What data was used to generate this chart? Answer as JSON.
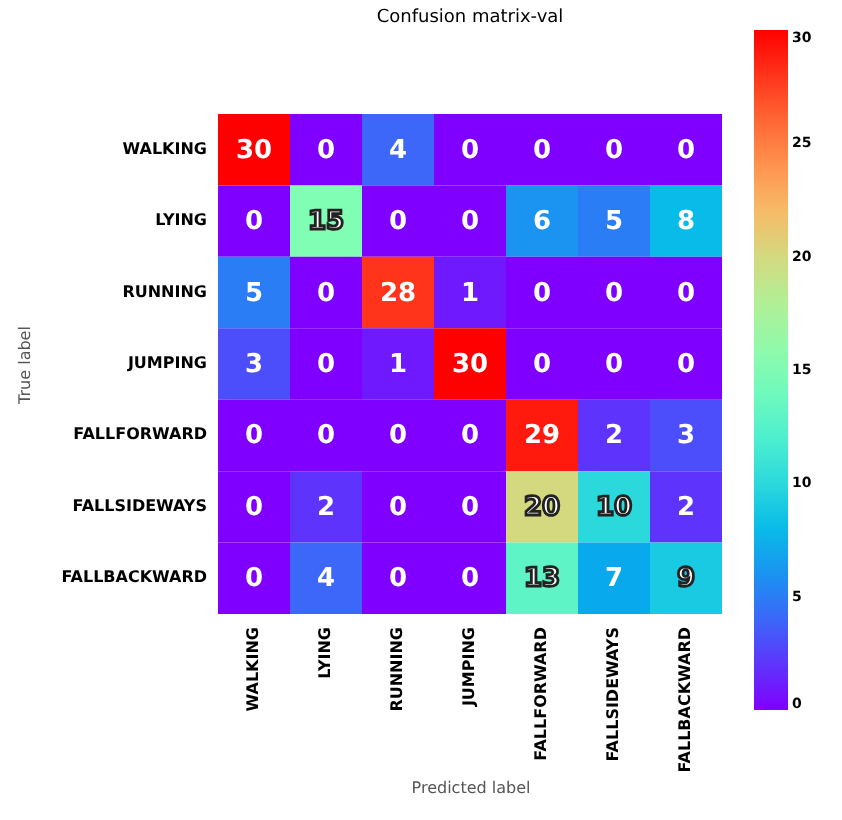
{
  "chart_data": {
    "type": "heatmap",
    "title": "Confusion matrix-val",
    "xlabel": "Predicted label",
    "ylabel": "True label",
    "categories": [
      "WALKING",
      "LYING",
      "RUNNING",
      "JUMPING",
      "FALLFORWARD",
      "FALLSIDEWAYS",
      "FALLBACKWARD"
    ],
    "y_categories": [
      "WALKING",
      "LYING",
      "RUNNING",
      "JUMPING",
      "FALLFORWARD",
      "FALLSIDEWAYS",
      "FALLBACKWARD"
    ],
    "cells": [
      [
        30,
        0,
        4,
        0,
        0,
        0,
        0
      ],
      [
        0,
        15,
        0,
        0,
        6,
        5,
        8
      ],
      [
        5,
        0,
        28,
        1,
        0,
        0,
        0
      ],
      [
        3,
        0,
        1,
        30,
        0,
        0,
        0
      ],
      [
        0,
        0,
        0,
        0,
        29,
        2,
        3
      ],
      [
        0,
        2,
        0,
        0,
        20,
        10,
        2
      ],
      [
        0,
        4,
        0,
        0,
        13,
        7,
        9
      ]
    ],
    "clim": [
      0,
      30
    ],
    "cticks": [
      0,
      5,
      10,
      15,
      20,
      25,
      30
    ],
    "data_labels": true
  }
}
